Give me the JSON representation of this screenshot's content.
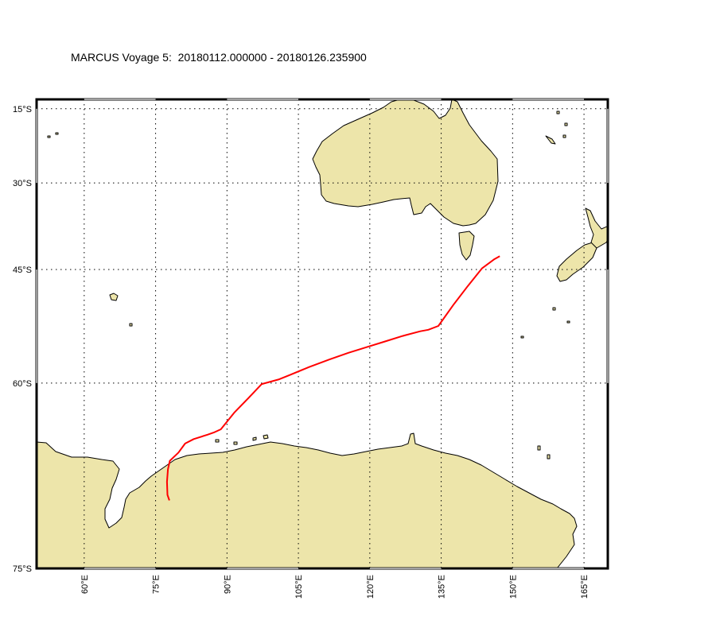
{
  "map": {
    "title": "MARCUS Voyage 5:  20180112.000000 - 20180126.235900",
    "colors": {
      "land": "#ede5aa",
      "coast": "#000000",
      "track": "#ff0000",
      "grid": "#000000",
      "background": "#ffffff"
    },
    "extent": {
      "lon": [
        50,
        170
      ],
      "lat": [
        -75,
        -13
      ]
    },
    "grid": {
      "on": true,
      "style": "dotted"
    },
    "lat_ticks": [
      {
        "lat": -15,
        "label": "15°S"
      },
      {
        "lat": -30,
        "label": "30°S"
      },
      {
        "lat": -45,
        "label": "45°S"
      },
      {
        "lat": -60,
        "label": "60°S"
      },
      {
        "lat": -75,
        "label": "75°S"
      }
    ],
    "lon_ticks": [
      {
        "lon": 60,
        "label": "60°E"
      },
      {
        "lon": 75,
        "label": "75°E"
      },
      {
        "lon": 90,
        "label": "90°E"
      },
      {
        "lon": 105,
        "label": "105°E"
      },
      {
        "lon": 120,
        "label": "120°E"
      },
      {
        "lon": 135,
        "label": "135°E"
      },
      {
        "lon": 150,
        "label": "150°E"
      },
      {
        "lon": 165,
        "label": "165°E"
      }
    ],
    "track": [
      [
        147.3,
        -42.9
      ],
      [
        146.1,
        -43.4
      ],
      [
        143.6,
        -44.8
      ],
      [
        140.6,
        -47.5
      ],
      [
        137.6,
        -50.2
      ],
      [
        134.4,
        -53.1
      ],
      [
        132.3,
        -53.6
      ],
      [
        130.6,
        -53.8
      ],
      [
        126.9,
        -54.4
      ],
      [
        123.2,
        -55.1
      ],
      [
        119.4,
        -55.8
      ],
      [
        115.5,
        -56.5
      ],
      [
        111.5,
        -57.3
      ],
      [
        107.2,
        -58.2
      ],
      [
        103.2,
        -59.1
      ],
      [
        100.8,
        -59.6
      ],
      [
        97.3,
        -60.1
      ],
      [
        94.5,
        -61.6
      ],
      [
        91.5,
        -63.1
      ],
      [
        88.7,
        -64.7
      ],
      [
        87.2,
        -65.0
      ],
      [
        85.9,
        -65.2
      ],
      [
        83.0,
        -65.6
      ],
      [
        81.2,
        -66.0
      ],
      [
        79.8,
        -66.8
      ],
      [
        78.0,
        -67.5
      ],
      [
        77.6,
        -68.2
      ],
      [
        77.4,
        -69.2
      ],
      [
        77.5,
        -70.2
      ],
      [
        77.9,
        -70.6
      ]
    ]
  }
}
